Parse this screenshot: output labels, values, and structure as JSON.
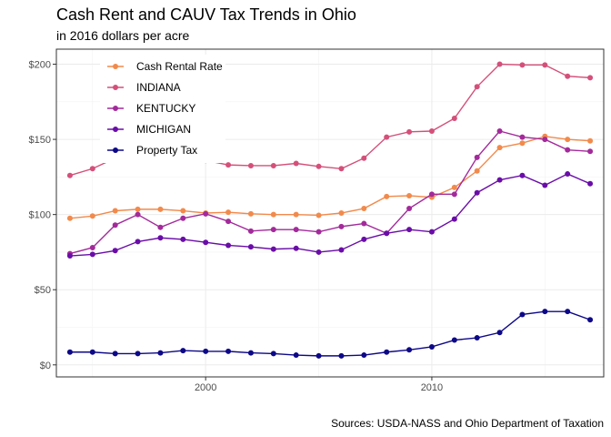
{
  "chart_data": {
    "type": "line",
    "title": "Cash Rent and CAUV Tax Trends in Ohio",
    "subtitle": "in 2016 dollars per acre",
    "caption": "Sources: USDA-NASS and Ohio Department of Taxation",
    "xlabel": "",
    "ylabel": "",
    "xlim": [
      1993.4,
      2017.6
    ],
    "ylim": [
      -8,
      210
    ],
    "x_ticks": [
      2000,
      2010
    ],
    "x_tick_labels": [
      "2000",
      "2010"
    ],
    "y_ticks": [
      0,
      50,
      100,
      150,
      200
    ],
    "y_tick_labels": [
      "$0",
      "$50",
      "$100",
      "$150",
      "$200"
    ],
    "grid": true,
    "legend_position": "top-left",
    "x": [
      1994,
      1995,
      1996,
      1997,
      1998,
      1999,
      2000,
      2001,
      2002,
      2003,
      2004,
      2005,
      2006,
      2007,
      2008,
      2009,
      2010,
      2011,
      2012,
      2013,
      2014,
      2015,
      2016,
      2017
    ],
    "series": [
      {
        "name": "Cash Rental Rate",
        "color": "#F28A4B",
        "values": [
          97.5,
          99,
          102.5,
          103.5,
          103.5,
          102.5,
          101,
          101.5,
          100.5,
          100,
          100,
          99.5,
          101,
          104,
          112,
          112.5,
          111.5,
          118,
          129,
          144.5,
          147.5,
          152,
          150,
          149
        ]
      },
      {
        "name": "INDIANA",
        "color": "#D4507A",
        "values": [
          126,
          130.5,
          137.5,
          139,
          138.5,
          137.5,
          136,
          133,
          132.5,
          132.5,
          134,
          132,
          130.5,
          137.5,
          151.5,
          155,
          155.5,
          164,
          185,
          200,
          199.5,
          199.5,
          192,
          191
        ]
      },
      {
        "name": "KENTUCKY",
        "color": "#A32A9B",
        "values": [
          74,
          78,
          93,
          100,
          91.5,
          97.5,
          100.5,
          95.5,
          89,
          90,
          90,
          88.5,
          92,
          94,
          87.5,
          104,
          113.5,
          113.5,
          138,
          155.5,
          151.5,
          150,
          143,
          142
        ]
      },
      {
        "name": "MICHIGAN",
        "color": "#6A0DA8",
        "values": [
          72.5,
          73.5,
          76,
          82,
          84.5,
          83.5,
          81.5,
          79.5,
          78.5,
          77,
          77.5,
          75,
          76.5,
          83.5,
          87.5,
          90,
          88.5,
          97,
          114.5,
          123,
          126,
          119.5,
          127,
          120.5
        ]
      },
      {
        "name": "Property Tax",
        "color": "#0D0887",
        "values": [
          8.5,
          8.5,
          7.5,
          7.5,
          8,
          9.5,
          9,
          9,
          8,
          7.5,
          6.5,
          6,
          6,
          6.5,
          8.5,
          10,
          12,
          16.5,
          18,
          21.5,
          33.5,
          35.5,
          35.5,
          30
        ]
      }
    ]
  }
}
